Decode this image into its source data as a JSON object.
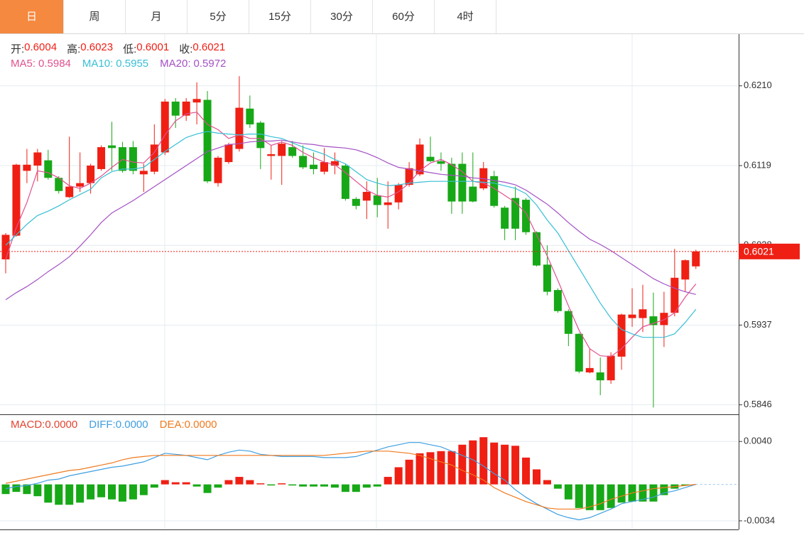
{
  "tabs": [
    "日",
    "周",
    "月",
    "5分",
    "15分",
    "30分",
    "60分",
    "4时"
  ],
  "active_tab": 0,
  "chart_data": [
    {
      "type": "candlestick",
      "up_color": "#ef1f14",
      "down_color": "#17a817",
      "grid": true,
      "ylim": [
        0.5836,
        0.6269
      ],
      "yticks": [
        0.5846,
        0.5937,
        0.6028,
        0.6119,
        {
          "value": 0.621,
          "label": "0.6210"
        }
      ],
      "info": [
        {
          "label": "开:",
          "value": 0.6004
        },
        {
          "label": "高:",
          "value": 0.6023
        },
        {
          "label": "低:",
          "value": 0.6001
        },
        {
          "label": "收:",
          "value": 0.6021
        }
      ],
      "open": [
        0.6012,
        0.6039,
        0.6113,
        0.6119,
        0.6125,
        0.6105,
        0.6083,
        0.6095,
        0.6099,
        0.6115,
        0.6142,
        0.614,
        0.614,
        0.6109,
        0.6112,
        0.6134,
        0.6192,
        0.6176,
        0.6191,
        0.6194,
        0.6099,
        0.6123,
        0.6138,
        0.6184,
        0.6168,
        0.613,
        0.613,
        0.614,
        0.613,
        0.612,
        0.6112,
        0.6119,
        0.6119,
        0.6081,
        0.6079,
        0.6085,
        0.6074,
        0.6077,
        0.6097,
        0.6109,
        0.6129,
        0.6124,
        0.6121,
        0.6121,
        0.6095,
        0.6093,
        0.6107,
        0.6071,
        0.6082,
        0.608,
        0.6043,
        0.6006,
        0.5977,
        0.5953,
        0.5927,
        0.5883,
        0.5883,
        0.5874,
        0.5901,
        0.5945,
        0.5945,
        0.5947,
        0.5937,
        0.5951,
        0.5989,
        0.6004
      ],
      "high": [
        0.6042,
        0.6121,
        0.6138,
        0.6138,
        0.6137,
        0.6107,
        0.6152,
        0.6134,
        0.6121,
        0.6142,
        0.6169,
        0.6146,
        0.6147,
        0.6121,
        0.6166,
        0.6195,
        0.6196,
        0.6196,
        0.6214,
        0.6204,
        0.613,
        0.6145,
        0.6221,
        0.6199,
        0.617,
        0.6142,
        0.6147,
        0.6147,
        0.6142,
        0.6134,
        0.6139,
        0.6134,
        0.6121,
        0.6083,
        0.6101,
        0.6105,
        0.6101,
        0.6099,
        0.6123,
        0.615,
        0.6152,
        0.6134,
        0.6128,
        0.6134,
        0.6134,
        0.6123,
        0.6113,
        0.6073,
        0.6095,
        0.6082,
        0.6044,
        0.6028,
        0.5979,
        0.5955,
        0.5928,
        0.591,
        0.59,
        0.5906,
        0.595,
        0.5979,
        0.5983,
        0.5974,
        0.5975,
        0.6024,
        0.6012,
        0.6023
      ],
      "low": [
        0.5996,
        0.6038,
        0.6099,
        0.6101,
        0.6103,
        0.6087,
        0.6082,
        0.6089,
        0.6087,
        0.6113,
        0.6113,
        0.6111,
        0.6109,
        0.6089,
        0.6109,
        0.6131,
        0.6162,
        0.617,
        0.6166,
        0.6099,
        0.6095,
        0.6121,
        0.6135,
        0.6162,
        0.6115,
        0.6103,
        0.6097,
        0.6128,
        0.6115,
        0.6109,
        0.6109,
        0.6109,
        0.6079,
        0.6069,
        0.6058,
        0.606,
        0.6047,
        0.6069,
        0.6095,
        0.6107,
        0.6123,
        0.6113,
        0.6064,
        0.6064,
        0.6077,
        0.6091,
        0.6071,
        0.6034,
        0.6034,
        0.604,
        0.6004,
        0.5971,
        0.5951,
        0.5913,
        0.5882,
        0.5882,
        0.5857,
        0.587,
        0.5886,
        0.5935,
        0.5929,
        0.5843,
        0.5912,
        0.5947,
        0.5975,
        0.6001
      ],
      "close": [
        0.604,
        0.612,
        0.612,
        0.6134,
        0.6105,
        0.609,
        0.6095,
        0.6099,
        0.6119,
        0.614,
        0.6139,
        0.6113,
        0.6113,
        0.6113,
        0.6143,
        0.6192,
        0.6176,
        0.6192,
        0.6195,
        0.6101,
        0.6128,
        0.6143,
        0.6185,
        0.6166,
        0.6139,
        0.6132,
        0.6144,
        0.613,
        0.6117,
        0.6115,
        0.6123,
        0.6124,
        0.6081,
        0.6073,
        0.6089,
        0.6074,
        0.6077,
        0.6097,
        0.6116,
        0.6143,
        0.6124,
        0.6121,
        0.6078,
        0.6078,
        0.6078,
        0.6116,
        0.6073,
        0.6047,
        0.6047,
        0.6043,
        0.6005,
        0.5975,
        0.5953,
        0.5927,
        0.5884,
        0.5888,
        0.5874,
        0.5902,
        0.5949,
        0.5949,
        0.5955,
        0.5937,
        0.5951,
        0.5991,
        0.6011,
        0.6021
      ],
      "series": [
        {
          "name": "MA5:",
          "color": "#e0508f",
          "current": 0.5984,
          "values": [
            0.6012,
            0.6048,
            0.6077,
            0.6113,
            0.6111,
            0.6105,
            0.6096,
            0.6093,
            0.6099,
            0.6107,
            0.6117,
            0.6126,
            0.6123,
            0.6122,
            0.6134,
            0.6154,
            0.617,
            0.6178,
            0.618,
            0.6166,
            0.616,
            0.615,
            0.6154,
            0.615,
            0.615,
            0.6142,
            0.6146,
            0.6142,
            0.6134,
            0.6128,
            0.6123,
            0.612,
            0.6111,
            0.6101,
            0.6091,
            0.6085,
            0.6083,
            0.6089,
            0.6099,
            0.6113,
            0.6122,
            0.6126,
            0.612,
            0.6112,
            0.6101,
            0.6099,
            0.6093,
            0.6085,
            0.6077,
            0.6065,
            0.604,
            0.6016,
            0.5988,
            0.5959,
            0.5931,
            0.591,
            0.5902,
            0.5901,
            0.591,
            0.5923,
            0.5935,
            0.5939,
            0.5943,
            0.5951,
            0.5969,
            0.5984
          ]
        },
        {
          "name": "MA10:",
          "color": "#38bfd6",
          "current": 0.5955,
          "values": [
            0.6028,
            0.604,
            0.6052,
            0.6062,
            0.6067,
            0.6073,
            0.608,
            0.6086,
            0.6092,
            0.6105,
            0.6112,
            0.6115,
            0.6115,
            0.6117,
            0.6126,
            0.6135,
            0.6143,
            0.6151,
            0.6155,
            0.6158,
            0.6156,
            0.6155,
            0.6154,
            0.6155,
            0.6155,
            0.6152,
            0.615,
            0.6145,
            0.614,
            0.6136,
            0.6132,
            0.6126,
            0.6121,
            0.6112,
            0.6103,
            0.6099,
            0.6096,
            0.6097,
            0.6099,
            0.61,
            0.6101,
            0.6101,
            0.6101,
            0.6101,
            0.6101,
            0.61,
            0.6099,
            0.6096,
            0.6093,
            0.6087,
            0.6074,
            0.6057,
            0.6042,
            0.6022,
            0.6002,
            0.5982,
            0.5962,
            0.5945,
            0.5932,
            0.5927,
            0.5923,
            0.5923,
            0.5923,
            0.5927,
            0.594,
            0.5955
          ]
        },
        {
          "name": "MA20:",
          "color": "#a450c4",
          "current": 0.5972,
          "values": [
            0.5966,
            0.5974,
            0.5981,
            0.5989,
            0.5998,
            0.6006,
            0.6015,
            0.6027,
            0.604,
            0.6054,
            0.6065,
            0.6072,
            0.6079,
            0.6087,
            0.6095,
            0.6103,
            0.6111,
            0.6119,
            0.6127,
            0.6135,
            0.6139,
            0.6143,
            0.6144,
            0.6146,
            0.6147,
            0.6147,
            0.6148,
            0.6146,
            0.6144,
            0.6143,
            0.6141,
            0.614,
            0.6139,
            0.6137,
            0.6133,
            0.6128,
            0.6122,
            0.6117,
            0.6115,
            0.6113,
            0.6111,
            0.6109,
            0.6108,
            0.6107,
            0.6105,
            0.6104,
            0.6102,
            0.61,
            0.6097,
            0.6091,
            0.6083,
            0.6075,
            0.6065,
            0.6054,
            0.6044,
            0.6035,
            0.6029,
            0.6022,
            0.6014,
            0.6006,
            0.5998,
            0.599,
            0.5984,
            0.5979,
            0.5975,
            0.5972
          ]
        }
      ]
    },
    {
      "type": "macd",
      "up_color": "#ef1f14",
      "down_color": "#17a817",
      "grid": true,
      "ylim": [
        -0.0042,
        0.0064
      ],
      "yticks": [
        -0.0034,
        {
          "value": 0.004,
          "label": "0.0040"
        }
      ],
      "series": [
        {
          "name": "MACD:",
          "color": "#e4432f",
          "current": {
            "value": 0,
            "label": "0.0000"
          },
          "values": [
            -0.0009,
            -0.0007,
            -0.0009,
            -0.0011,
            -0.0017,
            -0.0019,
            -0.0019,
            -0.0017,
            -0.0014,
            -0.0012,
            -0.0014,
            -0.0016,
            -0.0014,
            -0.001,
            -0.0003,
            0.0004,
            0.0002,
            0.0002,
            -0.0002,
            -0.0008,
            -0.0003,
            0.0004,
            0.0007,
            0.0004,
            0.0001,
            -0.0001,
            0.0001,
            -0.0001,
            -0.0002,
            -0.0002,
            -0.0002,
            -0.0003,
            -0.0007,
            -0.0007,
            -0.0003,
            -0.0002,
            0.0007,
            0.0016,
            0.0023,
            0.0029,
            0.003,
            0.0031,
            0.0031,
            0.0037,
            0.0041,
            0.0044,
            0.0039,
            0.0037,
            0.0036,
            0.0025,
            0.0014,
            0.0004,
            -0.0004,
            -0.0014,
            -0.0022,
            -0.0024,
            -0.0024,
            -0.0022,
            -0.0017,
            -0.0016,
            -0.0016,
            -0.0016,
            -0.001,
            -0.0004,
            -0.0001,
            0
          ]
        },
        {
          "name": "DIFF:",
          "color": "#3f9fe0",
          "current": {
            "value": 0,
            "label": "0.0000"
          },
          "values": [
            -0.0004,
            -0.0002,
            -0.0001,
            0.0001,
            0.0004,
            0.0005,
            0.0008,
            0.001,
            0.0012,
            0.0014,
            0.0016,
            0.0017,
            0.0019,
            0.0021,
            0.0025,
            0.0029,
            0.0028,
            0.0027,
            0.0025,
            0.0023,
            0.0027,
            0.003,
            0.0032,
            0.0031,
            0.0028,
            0.0027,
            0.0026,
            0.0026,
            0.0026,
            0.0026,
            0.0025,
            0.0025,
            0.0025,
            0.0026,
            0.0029,
            0.0032,
            0.0035,
            0.0037,
            0.0039,
            0.0039,
            0.0037,
            0.0035,
            0.0031,
            0.0027,
            0.0023,
            0.0017,
            0.001,
            0.0004,
            -0.0005,
            -0.0012,
            -0.0018,
            -0.0023,
            -0.0028,
            -0.0031,
            -0.0033,
            -0.0031,
            -0.0027,
            -0.0023,
            -0.0018,
            -0.0016,
            -0.0014,
            -0.0012,
            -0.0008,
            -0.0006,
            -0.0003,
            0
          ]
        },
        {
          "name": "DEA:",
          "color": "#f07a1e",
          "current": {
            "value": 0,
            "label": "0.0000"
          },
          "values": [
            0.0001,
            0.0003,
            0.0005,
            0.0007,
            0.0009,
            0.0011,
            0.0013,
            0.0014,
            0.0016,
            0.0018,
            0.002,
            0.0023,
            0.0025,
            0.0026,
            0.0027,
            0.0027,
            0.0027,
            0.0027,
            0.0027,
            0.0027,
            0.0027,
            0.0027,
            0.0027,
            0.0027,
            0.0027,
            0.0027,
            0.0027,
            0.0027,
            0.0027,
            0.0027,
            0.0027,
            0.0028,
            0.0029,
            0.003,
            0.0031,
            0.0031,
            0.0031,
            0.003,
            0.0029,
            0.0027,
            0.0024,
            0.0021,
            0.0018,
            0.0013,
            0.0009,
            0.0004,
            -0.0003,
            -0.0008,
            -0.0012,
            -0.0016,
            -0.0019,
            -0.0022,
            -0.0023,
            -0.0023,
            -0.0023,
            -0.0021,
            -0.0018,
            -0.0014,
            -0.0011,
            -0.0008,
            -0.0006,
            -0.0004,
            -0.0003,
            -0.0002,
            -0.0001,
            0
          ]
        }
      ]
    }
  ]
}
